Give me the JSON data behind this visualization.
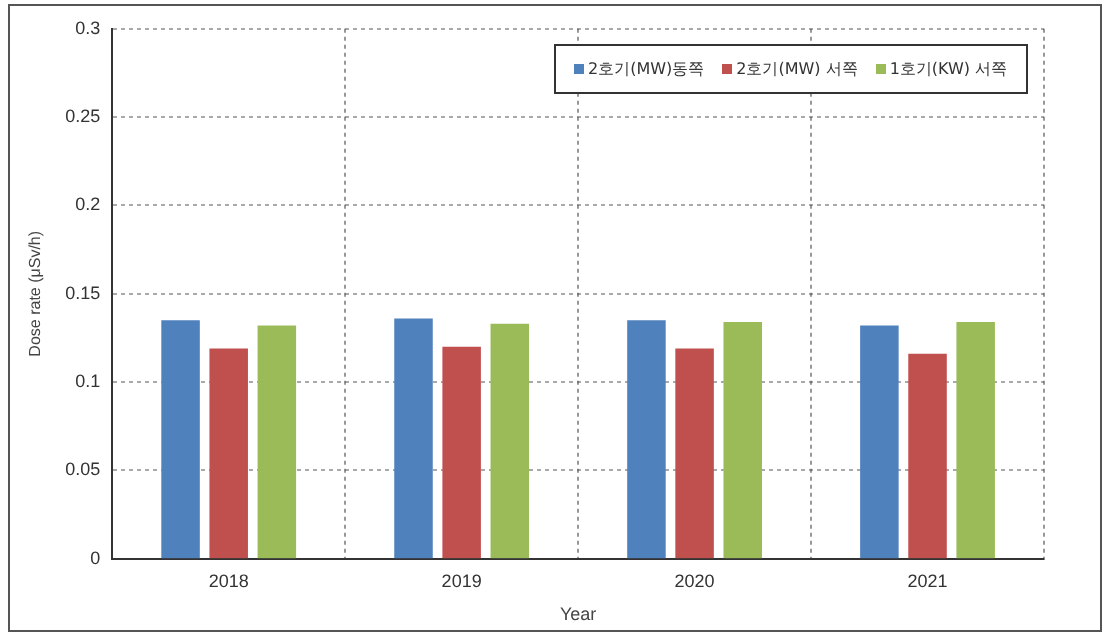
{
  "chart_data": {
    "type": "bar",
    "xlabel": "Year",
    "ylabel": "Dose rate (μSv/h)",
    "categories": [
      "2018",
      "2019",
      "2020",
      "2021"
    ],
    "series": [
      {
        "name": "2호기(MW)동쪽",
        "color": "#4f81bd",
        "values": [
          0.135,
          0.136,
          0.135,
          0.132
        ]
      },
      {
        "name": "2호기(MW) 서쪽",
        "color": "#c0504d",
        "values": [
          0.119,
          0.12,
          0.119,
          0.116
        ]
      },
      {
        "name": "1호기(KW) 서쪽",
        "color": "#9bbb59",
        "values": [
          0.132,
          0.133,
          0.134,
          0.134
        ]
      }
    ],
    "ylim": [
      0,
      0.3
    ],
    "yticks": [
      0,
      0.05,
      0.1,
      0.15,
      0.2,
      0.25,
      0.3
    ],
    "grid": true,
    "legend": "top right"
  }
}
